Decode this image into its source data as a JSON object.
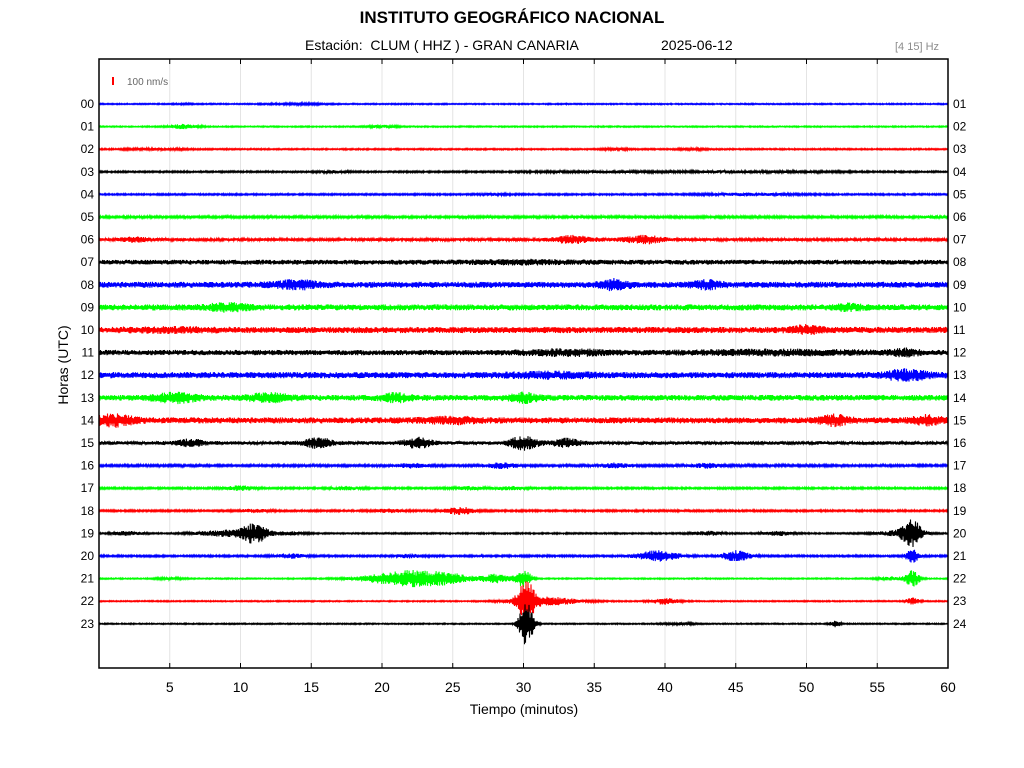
{
  "header": {
    "title": "INSTITUTO GEOGRÁFICO NACIONAL",
    "station_line": "Estación:  CLUM ( HHZ ) - GRAN CANARIA",
    "date": "2025-06-12",
    "band": "[4 15] Hz"
  },
  "chart_data": {
    "type": "line",
    "title": "INSTITUTO GEOGRÁFICO NACIONAL",
    "xlabel": "Tiempo (minutos)",
    "ylabel": "Horas (UTC)",
    "xlim": [
      0,
      60
    ],
    "x_ticks": [
      "5",
      "10",
      "15",
      "20",
      "25",
      "30",
      "35",
      "40",
      "45",
      "50",
      "55",
      "60"
    ],
    "scale_label": "100 nm/s",
    "grid": true,
    "rows": [
      {
        "left": "00",
        "right": "01",
        "color": "#0000ff",
        "noise": 0.6,
        "events": [
          [
            14,
            2,
            0.6
          ],
          [
            6,
            1,
            0.3
          ]
        ]
      },
      {
        "left": "01",
        "right": "02",
        "color": "#00ff00",
        "noise": 0.6,
        "events": [
          [
            6,
            1,
            2.2
          ],
          [
            20,
            1,
            1.2
          ]
        ]
      },
      {
        "left": "02",
        "right": "03",
        "color": "#ff0000",
        "noise": 0.7,
        "events": [
          [
            4,
            2,
            0.8
          ],
          [
            36.5,
            1,
            0.8
          ],
          [
            42,
            1,
            0.6
          ]
        ]
      },
      {
        "left": "03",
        "right": "04",
        "color": "#000000",
        "noise": 0.8,
        "events": [
          [
            16.5,
            1,
            1.0
          ],
          [
            35,
            4,
            0.8
          ],
          [
            44,
            3,
            0.8
          ],
          [
            50,
            3,
            0.6
          ]
        ]
      },
      {
        "left": "04",
        "right": "05",
        "color": "#0000ff",
        "noise": 0.8,
        "events": [
          [
            28,
            1,
            0.8
          ],
          [
            46,
            3,
            1.0
          ]
        ]
      },
      {
        "left": "05",
        "right": "06",
        "color": "#00ff00",
        "noise": 1.1,
        "events": [
          [
            60,
            4,
            0.6
          ]
        ]
      },
      {
        "left": "06",
        "right": "07",
        "color": "#ff0000",
        "noise": 1.4,
        "events": [
          [
            2.5,
            1,
            2.0
          ],
          [
            33.5,
            1.5,
            3.5
          ],
          [
            38.5,
            1.5,
            3.5
          ]
        ]
      },
      {
        "left": "07",
        "right": "08",
        "color": "#000000",
        "noise": 2.4,
        "events": [
          [
            30,
            4,
            1.0
          ]
        ]
      },
      {
        "left": "08",
        "right": "09",
        "color": "#0000ff",
        "noise": 3.0,
        "events": [
          [
            14,
            1.5,
            3.0
          ],
          [
            36.5,
            1,
            4.0
          ],
          [
            43,
            1,
            3.0
          ]
        ]
      },
      {
        "left": "09",
        "right": "10",
        "color": "#00ff00",
        "noise": 3.0,
        "events": [
          [
            9,
            1.5,
            2.5
          ],
          [
            53,
            1,
            2.0
          ]
        ]
      },
      {
        "left": "10",
        "right": "11",
        "color": "#ff0000",
        "noise": 3.1,
        "events": [
          [
            50,
            1,
            3.0
          ],
          [
            5,
            3,
            1.0
          ]
        ]
      },
      {
        "left": "11",
        "right": "12",
        "color": "#000000",
        "noise": 2.6,
        "events": [
          [
            33,
            3,
            2.0
          ],
          [
            48,
            6,
            1.5
          ],
          [
            57,
            1,
            2.5
          ]
        ]
      },
      {
        "left": "12",
        "right": "13",
        "color": "#0000ff",
        "noise": 3.1,
        "events": [
          [
            57,
            1.5,
            4.0
          ],
          [
            32,
            3,
            1.5
          ]
        ]
      },
      {
        "left": "13",
        "right": "14",
        "color": "#00ff00",
        "noise": 2.9,
        "events": [
          [
            5.5,
            1.5,
            3.5
          ],
          [
            12,
            1.5,
            3.0
          ],
          [
            21,
            1,
            3.0
          ],
          [
            30,
            1,
            3.5
          ]
        ]
      },
      {
        "left": "14",
        "right": "15",
        "color": "#ff0000",
        "noise": 3.0,
        "events": [
          [
            1,
            1.5,
            4.5
          ],
          [
            25,
            2,
            2.0
          ],
          [
            52,
            1,
            4.0
          ],
          [
            58.5,
            1,
            3.5
          ]
        ]
      },
      {
        "left": "15",
        "right": "16",
        "color": "#000000",
        "noise": 1.8,
        "events": [
          [
            15.5,
            1,
            4.5
          ],
          [
            22.5,
            1,
            4.5
          ],
          [
            30,
            1,
            6.0
          ],
          [
            33,
            1,
            3.5
          ],
          [
            6.5,
            1,
            3.0
          ]
        ]
      },
      {
        "left": "16",
        "right": "17",
        "color": "#0000ff",
        "noise": 1.1,
        "events": [
          [
            22,
            1,
            2.0
          ],
          [
            28.5,
            1,
            2.5
          ],
          [
            36.5,
            1,
            2.0
          ],
          [
            43,
            1,
            2.0
          ]
        ]
      },
      {
        "left": "17",
        "right": "18",
        "color": "#00ff00",
        "noise": 0.9,
        "events": [
          [
            10,
            1,
            2.0
          ],
          [
            17.5,
            1,
            1.5
          ],
          [
            26,
            1,
            1.5
          ],
          [
            29,
            1,
            1.5
          ]
        ]
      },
      {
        "left": "18",
        "right": "19",
        "color": "#ff0000",
        "noise": 0.9,
        "events": [
          [
            25.5,
            1,
            3.5
          ],
          [
            11,
            1,
            1.5
          ],
          [
            20.5,
            1,
            1.5
          ]
        ]
      },
      {
        "left": "19",
        "right": "20",
        "color": "#000000",
        "noise": 0.7,
        "events": [
          [
            11,
            1,
            9.0
          ],
          [
            9,
            2,
            3.0
          ],
          [
            2,
            1,
            2.0
          ],
          [
            13.5,
            1,
            1.5
          ],
          [
            43,
            1,
            2.0
          ],
          [
            48,
            1,
            2.0
          ],
          [
            57.5,
            0.7,
            12.0
          ],
          [
            56.5,
            1.5,
            2.5
          ]
        ]
      },
      {
        "left": "20",
        "right": "21",
        "color": "#0000ff",
        "noise": 0.9,
        "events": [
          [
            39.5,
            1.5,
            5.0
          ],
          [
            45,
            1,
            5.0
          ],
          [
            57.5,
            0.5,
            6.0
          ],
          [
            13.5,
            1,
            2.0
          ],
          [
            22,
            1,
            1.5
          ]
        ]
      },
      {
        "left": "21",
        "right": "22",
        "color": "#00ff00",
        "noise": 0.6,
        "events": [
          [
            22,
            3,
            8.0
          ],
          [
            25,
            1.5,
            2.5
          ],
          [
            28,
            1,
            4.0
          ],
          [
            30,
            0.6,
            8.0
          ],
          [
            56,
            1,
            1.5
          ],
          [
            57.5,
            0.5,
            8.0
          ],
          [
            5,
            1,
            0.8
          ]
        ]
      },
      {
        "left": "22",
        "right": "23",
        "color": "#ff0000",
        "noise": 0.6,
        "events": [
          [
            30.2,
            0.6,
            20.0
          ],
          [
            31.5,
            2.5,
            4.0
          ],
          [
            40,
            1,
            3.0
          ],
          [
            57.5,
            0.5,
            3.0
          ]
        ]
      },
      {
        "left": "23",
        "right": "24",
        "color": "#000000",
        "noise": 0.6,
        "events": [
          [
            30.2,
            0.5,
            22.0
          ],
          [
            52,
            0.4,
            3.0
          ],
          [
            41,
            1,
            1.0
          ]
        ]
      }
    ]
  }
}
